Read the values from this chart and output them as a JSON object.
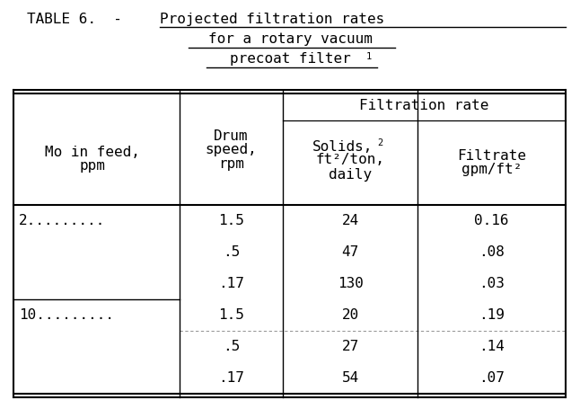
{
  "title_line1_left": "TABLE 6.  - ",
  "title_line1_right": "Projected filtration rates",
  "title_line2": "for a rotary vacuum",
  "title_line3": "precoat filter",
  "title_superscript": "1",
  "filtration_rate_header": "Filtration rate",
  "col0_header_line1": "Mo in feed,",
  "col0_header_line2": "ppm",
  "col1_header_line1": "Drum",
  "col1_header_line2": "speed,",
  "col1_header_line3": "rpm",
  "col2_header_line1": "Solids,",
  "col2_header_sup": "2",
  "col2_header_line2": "ft²/ton,",
  "col2_header_line3": "daily",
  "col3_header_line1": "Filtrate",
  "col3_header_line2": "gpm/ft²",
  "rows": [
    [
      "2.........",
      "1.5",
      "24",
      "0.16"
    ],
    [
      "",
      ".5",
      "47",
      ".08"
    ],
    [
      "",
      ".17",
      "130",
      ".03"
    ],
    [
      "10.........",
      "1.5",
      "20",
      ".19"
    ],
    [
      "",
      ".5",
      "27",
      ".14"
    ],
    [
      "",
      ".17",
      "54",
      ".07"
    ]
  ],
  "bg_color": "#ffffff",
  "font_color": "#000000",
  "font_size": 11.5,
  "title_font_size": 11.5
}
